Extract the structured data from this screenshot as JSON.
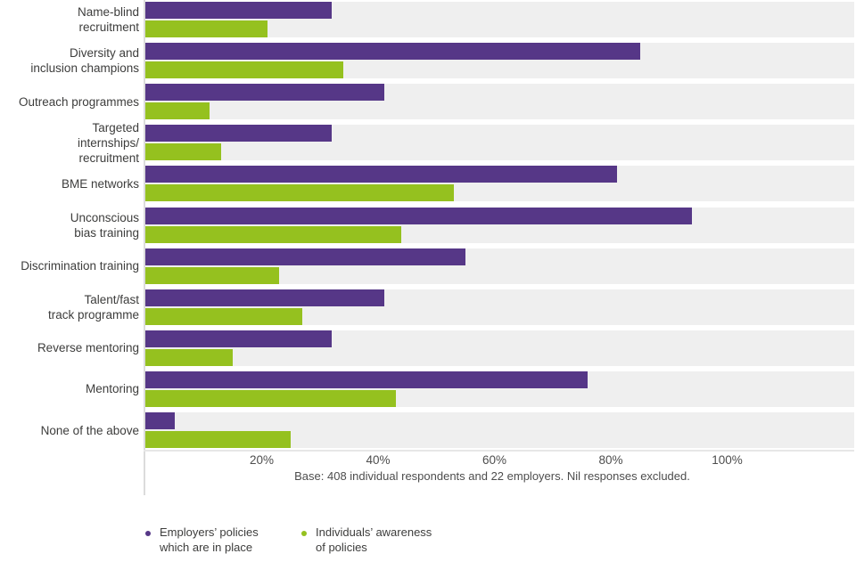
{
  "chart_data": {
    "type": "bar",
    "orientation": "horizontal",
    "title": "",
    "categories": [
      "Name-blind\nrecruitment",
      "Diversity and\ninclusion champions",
      "Outreach programmes",
      "Targeted\ninternships/\nrecruitment",
      "BME networks",
      "Unconscious\nbias training",
      "Discrimination training",
      "Talent/fast\ntrack programme",
      "Reverse mentoring",
      "Mentoring",
      "None of the above"
    ],
    "series": [
      {
        "name": "Employers’ policies which are in place",
        "color": "#563787",
        "values": [
          32,
          85,
          41,
          32,
          81,
          94,
          55,
          41,
          32,
          76,
          5
        ]
      },
      {
        "name": "Individuals’ awareness of policies",
        "color": "#95c11f",
        "values": [
          21,
          34,
          11,
          13,
          53,
          44,
          23,
          27,
          15,
          43,
          25
        ]
      }
    ],
    "x_tick_labels": [
      "20%",
      "40%",
      "60%",
      "80%",
      "100%"
    ],
    "x_tick_values": [
      20,
      40,
      60,
      80,
      100
    ],
    "xlim": [
      0,
      122
    ],
    "unit": "%",
    "grid": false,
    "track_color": "#efefef",
    "note": "Base: 408 individual respondents and 22 employers. Nil responses excluded.",
    "legend_position": "bottom-left"
  },
  "legend": {
    "items": [
      {
        "label": "Employers’ policies\nwhich are in place",
        "color": "#563787"
      },
      {
        "label": "Individuals’ awareness\nof policies",
        "color": "#95c11f"
      }
    ]
  }
}
